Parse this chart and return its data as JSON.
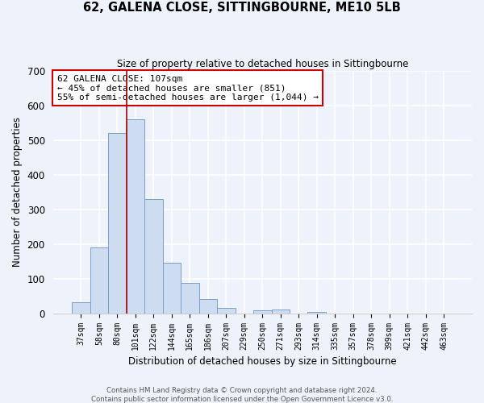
{
  "title": "62, GALENA CLOSE, SITTINGBOURNE, ME10 5LB",
  "subtitle": "Size of property relative to detached houses in Sittingbourne",
  "xlabel": "Distribution of detached houses by size in Sittingbourne",
  "ylabel": "Number of detached properties",
  "bar_labels": [
    "37sqm",
    "58sqm",
    "80sqm",
    "101sqm",
    "122sqm",
    "144sqm",
    "165sqm",
    "186sqm",
    "207sqm",
    "229sqm",
    "250sqm",
    "271sqm",
    "293sqm",
    "314sqm",
    "335sqm",
    "357sqm",
    "378sqm",
    "399sqm",
    "421sqm",
    "442sqm",
    "463sqm"
  ],
  "bar_heights": [
    33,
    190,
    520,
    560,
    330,
    145,
    87,
    41,
    15,
    0,
    8,
    11,
    0,
    3,
    0,
    0,
    0,
    0,
    0,
    0,
    0
  ],
  "bar_color": "#cddcf0",
  "bar_edge_color": "#7aa0c8",
  "vline_x_index": 3,
  "vline_color": "#aa0000",
  "annotation_title": "62 GALENA CLOSE: 107sqm",
  "annotation_line1": "← 45% of detached houses are smaller (851)",
  "annotation_line2": "55% of semi-detached houses are larger (1,044) →",
  "annotation_box_color": "#ffffff",
  "annotation_box_edge": "#cc0000",
  "ylim": [
    0,
    700
  ],
  "yticks": [
    0,
    100,
    200,
    300,
    400,
    500,
    600,
    700
  ],
  "footer1": "Contains HM Land Registry data © Crown copyright and database right 2024.",
  "footer2": "Contains public sector information licensed under the Open Government Licence v3.0.",
  "bg_color": "#eef2fb"
}
